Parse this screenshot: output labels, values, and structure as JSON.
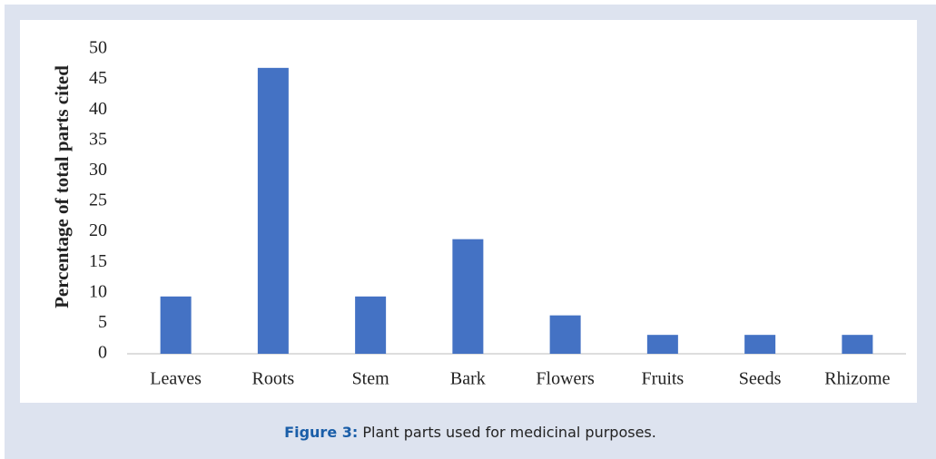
{
  "chart_data": {
    "type": "bar",
    "y_label": "Percentage of total parts cited",
    "categories": [
      "Leaves",
      "Roots",
      "Stem",
      "Bark",
      "Flowers",
      "Fruits",
      "Seeds",
      "Rhizome"
    ],
    "values": [
      9.4,
      46.9,
      9.4,
      18.8,
      6.3,
      3.1,
      3.1,
      3.1
    ],
    "color": "#4472c4",
    "ylim": [
      0,
      50
    ],
    "yticks": [
      0,
      5,
      10,
      15,
      20,
      25,
      30,
      35,
      40,
      45,
      50
    ],
    "grid": false
  },
  "caption": {
    "label": "Figure 3:",
    "text": "Plant parts used for medicinal purposes."
  }
}
